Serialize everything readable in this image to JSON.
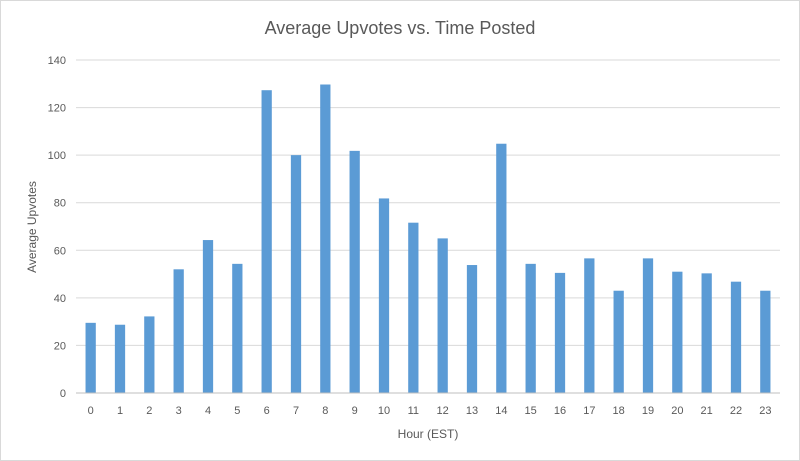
{
  "chart_data": {
    "type": "bar",
    "title": "Average Upvotes vs. Time Posted",
    "xlabel": "Hour (EST)",
    "ylabel": "Average Upvotes",
    "ylim": [
      0,
      140
    ],
    "yticks": [
      0,
      20,
      40,
      60,
      80,
      100,
      120,
      140
    ],
    "grid": true,
    "legend": "none",
    "categories": [
      "0",
      "1",
      "2",
      "3",
      "4",
      "5",
      "6",
      "7",
      "8",
      "9",
      "10",
      "11",
      "12",
      "13",
      "14",
      "15",
      "16",
      "17",
      "18",
      "19",
      "20",
      "21",
      "22",
      "23"
    ],
    "values": [
      29.5,
      28.7,
      32.2,
      52.0,
      64.3,
      54.3,
      127.3,
      100.0,
      129.7,
      101.8,
      81.8,
      71.6,
      65.0,
      53.8,
      104.8,
      54.3,
      50.5,
      56.6,
      43.0,
      56.6,
      51.0,
      50.3,
      46.8,
      43.0
    ],
    "bar_color": "#5B9BD5"
  }
}
